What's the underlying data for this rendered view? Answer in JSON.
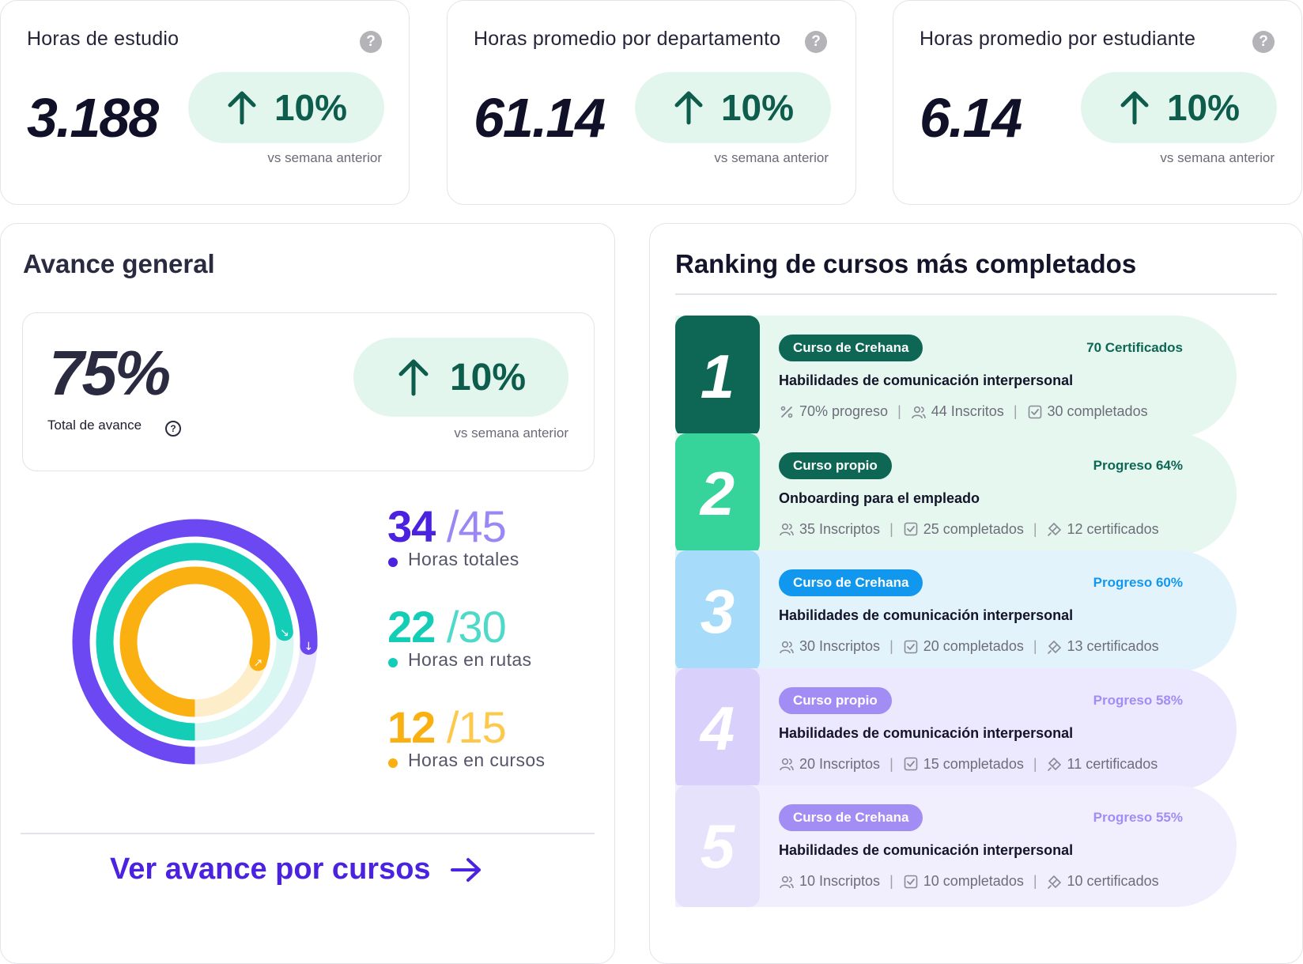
{
  "kpis": [
    {
      "title": "Horas de estudio",
      "value": "3.188",
      "trend": "10%",
      "sub": "vs semana anterior",
      "help": "?"
    },
    {
      "title": "Horas promedio por departamento",
      "value": "61.14",
      "trend": "10%",
      "sub": "vs semana anterior",
      "help": "?"
    },
    {
      "title": "Horas promedio por estudiante",
      "value": "6.14",
      "trend": "10%",
      "sub": "vs semana anterior",
      "help": "?"
    }
  ],
  "avance": {
    "title": "Avance general",
    "total_pct": "75%",
    "total_label": "Total de avance",
    "help": "?",
    "trend": "10%",
    "trend_sub": "vs semana anterior",
    "stats": [
      {
        "done": "34",
        "sep": "/",
        "total": "45",
        "label": "Horas totales",
        "fraction": 0.756,
        "color": "#6b48f2",
        "total_color": "#9a86f5"
      },
      {
        "done": "22",
        "sep": "/",
        "total": "30",
        "label": "Horas en rutas",
        "fraction": 0.733,
        "color": "#14cdb6",
        "total_color": "#4fd9c8"
      },
      {
        "done": "12",
        "sep": "/",
        "total": "15",
        "label": "Horas en cursos",
        "fraction": 0.8,
        "color": "#fbb012",
        "total_color": "#fcc94d"
      }
    ],
    "cta": "Ver avance por cursos"
  },
  "ranking": {
    "title": "Ranking de cursos más completados",
    "rows": [
      {
        "rank": "1",
        "tag": "Curso de Crehana",
        "right": "70 Certificados",
        "name": "Habilidades de comunicación interpersonal",
        "m1": "70% progreso",
        "m2": "44 Inscritos",
        "m3": "30 completados",
        "icons": [
          "percent-icon",
          "users-icon",
          "checkbox-icon"
        ],
        "num_bg": "#0e6655",
        "row_bg": "#e5f7ef",
        "tag_bg": "#0e6655",
        "right_color": "#0e6655"
      },
      {
        "rank": "2",
        "tag": "Curso propio",
        "right": "Progreso 64%",
        "name": "Onboarding para el empleado",
        "m1": "35 Inscriptos",
        "m2": "25 completados",
        "m3": "12 certificados",
        "icons": [
          "users-icon",
          "checkbox-icon",
          "certificate-icon"
        ],
        "num_bg": "#36d39a",
        "row_bg": "#e5f7ef",
        "tag_bg": "#0e6655",
        "right_color": "#0e6655"
      },
      {
        "rank": "3",
        "tag": "Curso de Crehana",
        "right": "Progreso 60%",
        "name": "Habilidades de comunicación interpersonal",
        "m1": "30 Inscriptos",
        "m2": "20 completados",
        "m3": "13 certificados",
        "icons": [
          "users-icon",
          "checkbox-icon",
          "certificate-icon"
        ],
        "num_bg": "#a6dcfa",
        "row_bg": "#e3f3fc",
        "tag_bg": "#1198ee",
        "right_color": "#1198ee"
      },
      {
        "rank": "4",
        "tag": "Curso propio",
        "right": "Progreso 58%",
        "name": "Habilidades de comunicación interpersonal",
        "m1": "20 Inscriptos",
        "m2": "15 completados",
        "m3": "11 certificados",
        "icons": [
          "users-icon",
          "checkbox-icon",
          "certificate-icon"
        ],
        "num_bg": "#d9d1fb",
        "row_bg": "#ece8fd",
        "tag_bg": "#a28df5",
        "right_color": "#a28df5"
      },
      {
        "rank": "5",
        "tag": "Curso de Crehana",
        "right": "Progreso 55%",
        "name": "Habilidades de comunicación interpersonal",
        "m1": "10 Inscriptos",
        "m2": "10 completados",
        "m3": "10 certificados",
        "icons": [
          "users-icon",
          "checkbox-icon",
          "certificate-icon"
        ],
        "num_bg": "#e7e2fc",
        "row_bg": "#f1eefd",
        "tag_bg": "#a28df5",
        "right_color": "#a28df5"
      }
    ]
  },
  "colors": {
    "accent": "#4b22e0",
    "trend_bg": "#e3f6ee",
    "trend_fg": "#0d5c4c"
  }
}
